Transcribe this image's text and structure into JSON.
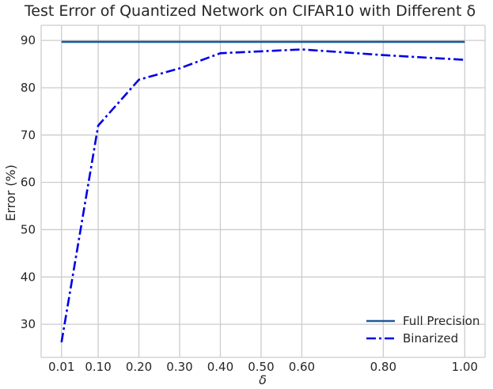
{
  "chart_data": {
    "type": "line",
    "title": "Test Error of Quantized Network on CIFAR10 with Different δ",
    "xlabel": "δ",
    "ylabel": "Error (%)",
    "x": [
      0.01,
      0.1,
      0.2,
      0.3,
      0.4,
      0.5,
      0.6,
      0.8,
      1.0
    ],
    "x_tick_labels": [
      "0.01",
      "0.10",
      "0.20",
      "0.30",
      "0.40",
      "0.50",
      "0.60",
      "0.80",
      "1.00"
    ],
    "xlim": [
      -0.04,
      1.05
    ],
    "ylim": [
      23,
      93.2
    ],
    "y_ticks": [
      30,
      40,
      50,
      60,
      70,
      80,
      90
    ],
    "grid": true,
    "legend_position": "lower-right",
    "series": [
      {
        "name": "Full Precision",
        "color": "#1f5a96",
        "line_style": "solid",
        "values": [
          89.7,
          89.7,
          89.7,
          89.7,
          89.7,
          89.7,
          89.7,
          89.7,
          89.7
        ]
      },
      {
        "name": "Binarized",
        "color": "#0000e6",
        "line_style": "dashdot",
        "values": [
          26.2,
          72.0,
          81.7,
          84.1,
          87.3,
          87.7,
          88.1,
          86.9,
          85.9
        ]
      }
    ]
  }
}
